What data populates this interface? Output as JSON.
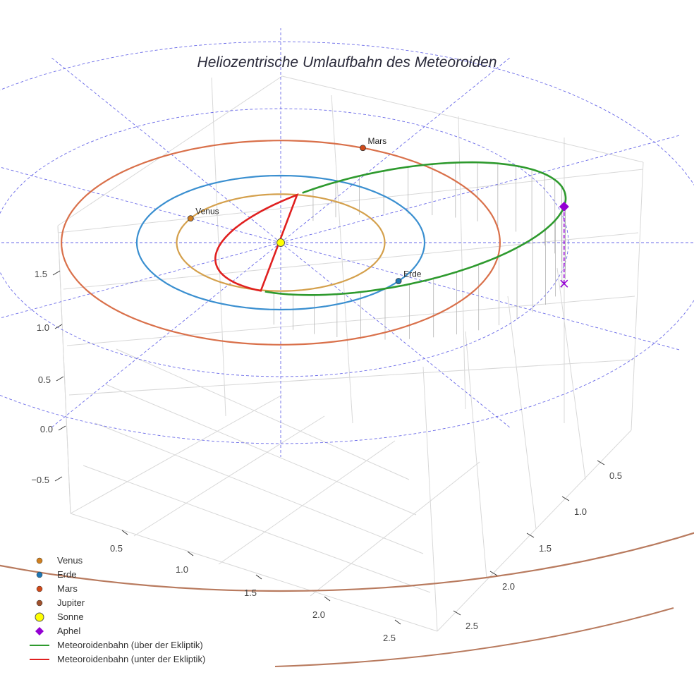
{
  "chart_data": {
    "type": "scatter3d",
    "title": "Heliozentrische Umlaufbahn des Meteoroiden",
    "axes": {
      "x_ticks": [
        "0.5",
        "1.0",
        "1.5",
        "2.0",
        "2.5"
      ],
      "y_ticks": [
        "0.5",
        "1.0",
        "1.5",
        "2.0",
        "2.5"
      ],
      "z_ticks": [
        "−0.5",
        "0.0",
        "0.5",
        "1.0",
        "1.5"
      ],
      "grid": true,
      "background": "white"
    },
    "ecliptic_grid": {
      "style": "dashed",
      "color": "#6a6ae8",
      "ring_radii_au": [
        1,
        2,
        3
      ],
      "spoke_angles_deg": [
        0,
        30,
        60,
        90,
        120,
        150,
        180,
        210,
        240,
        270,
        300,
        330
      ]
    },
    "orbits": [
      {
        "name": "Venus",
        "radius_au": 0.723,
        "color": "#d4a04c"
      },
      {
        "name": "Erde",
        "radius_au": 1.0,
        "color": "#3a8fd0"
      },
      {
        "name": "Mars",
        "radius_au": 1.524,
        "color": "#d9704a"
      },
      {
        "name": "Jupiter",
        "radius_au": 5.2,
        "color": "#b87a5e"
      }
    ],
    "bodies": [
      {
        "name": "Venus",
        "label": "Venus",
        "color": "#d08020",
        "angle_deg": 150
      },
      {
        "name": "Erde",
        "label": "Erde",
        "color": "#1f77b4",
        "angle_deg": -35
      },
      {
        "name": "Mars",
        "label": "Mars",
        "color": "#d04a1a",
        "angle_deg": 68
      },
      {
        "name": "Sonne",
        "color": "#ffff00",
        "angle_deg": 0
      }
    ],
    "meteoroid_orbit": {
      "perihelion_au": 0.45,
      "aphelion_au": 2.0,
      "aphelion_height_au": 0.6,
      "above_color": "#2e9a2e",
      "below_color": "#e02020",
      "drop_line_color": "#aaaaaa"
    },
    "aphelion": {
      "label": "Aphel",
      "color": "#9400d3"
    },
    "legend": [
      {
        "label": "Venus",
        "kind": "dot",
        "color": "#d08020"
      },
      {
        "label": "Erde",
        "kind": "dot",
        "color": "#1f77b4"
      },
      {
        "label": "Mars",
        "kind": "dot",
        "color": "#d04a1a"
      },
      {
        "label": "Jupiter",
        "kind": "dot",
        "color": "#a0522d"
      },
      {
        "label": "Sonne",
        "kind": "sun",
        "color": "#ffff00"
      },
      {
        "label": "Aphel",
        "kind": "diamond",
        "color": "#9400d3"
      },
      {
        "label": "Meteoroidenbahn (über der Ekliptik)",
        "kind": "line",
        "color": "#2e9a2e"
      },
      {
        "label": "Meteoroidenbahn (unter der Ekliptik)",
        "kind": "line",
        "color": "#e02020"
      }
    ],
    "legend_position": "bottom-left"
  }
}
